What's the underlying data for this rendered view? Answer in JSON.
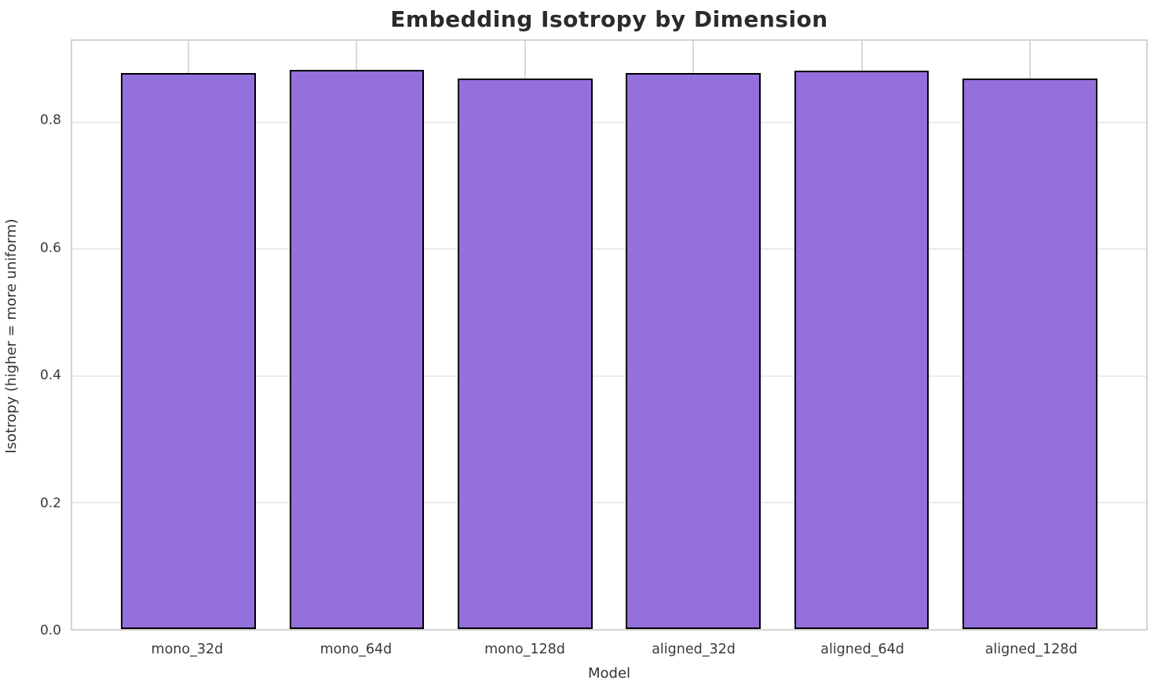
{
  "chart_data": {
    "type": "bar",
    "title": "Embedding Isotropy by Dimension",
    "xlabel": "Model",
    "ylabel": "Isotropy (higher = more uniform)",
    "categories": [
      "mono_32d",
      "mono_64d",
      "mono_128d",
      "aligned_32d",
      "aligned_64d",
      "aligned_128d"
    ],
    "values": [
      0.876,
      0.881,
      0.868,
      0.876,
      0.88,
      0.867
    ],
    "yticks": [
      0.0,
      0.2,
      0.4,
      0.6,
      0.8
    ],
    "ytick_labels": [
      "0.0",
      "0.2",
      "0.4",
      "0.6",
      "0.8"
    ],
    "ylim": [
      0,
      0.927
    ],
    "grid": "on",
    "legend": "none",
    "colors": {
      "bar_fill": "#9370DB",
      "bar_edge": "#000000",
      "hgrid": "#ebebeb",
      "vgrid": "#d9d9d9",
      "spine": "#d3d3d3",
      "title_text": "#2b2b2b",
      "tick_text": "#3a3a3a",
      "background": "#ffffff"
    }
  }
}
